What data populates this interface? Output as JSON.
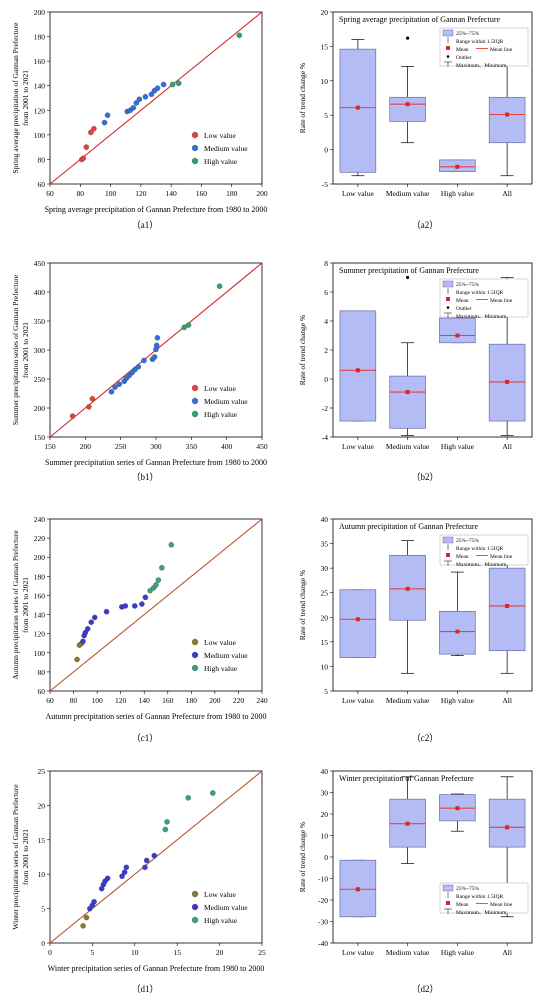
{
  "figure": {
    "panels": [
      {
        "id": "a1",
        "caption": "（a1）"
      },
      {
        "id": "a2",
        "caption": "（a2）"
      },
      {
        "id": "b1",
        "caption": "（b1）"
      },
      {
        "id": "b2",
        "caption": "（b2）"
      },
      {
        "id": "c1",
        "caption": "（c1）"
      },
      {
        "id": "c2",
        "caption": "（c2）"
      },
      {
        "id": "d1",
        "caption": "（d1）"
      },
      {
        "id": "d2",
        "caption": "（d2）"
      }
    ]
  },
  "chart_data": [
    {
      "id": "a1",
      "type": "scatter",
      "title": "",
      "xlabel": "Spring average  precipitation of Gannan Prefecture from 1980 to 2000",
      "ylabel": [
        "Spring average precipitation of Gannan Prefecture",
        "from 2001 to 2021"
      ],
      "xlim": [
        60,
        200
      ],
      "ylim": [
        60,
        200
      ],
      "xticks": [
        60,
        80,
        100,
        120,
        140,
        160,
        180,
        200
      ],
      "yticks": [
        60,
        80,
        100,
        120,
        140,
        160,
        180,
        200
      ],
      "diagonal": true,
      "diag_color": "#d62728",
      "legend_pos": "bottom-right",
      "series": [
        {
          "name": "Low value",
          "color": "#e8413a",
          "points": [
            [
              81,
              80
            ],
            [
              82,
              81
            ],
            [
              84,
              90
            ],
            [
              87,
              102
            ],
            [
              89,
              105
            ]
          ]
        },
        {
          "name": "Medium value",
          "color": "#2f6fe0",
          "points": [
            [
              96,
              110
            ],
            [
              98,
              116
            ],
            [
              111,
              119
            ],
            [
              113,
              120
            ],
            [
              115,
              122
            ],
            [
              117,
              126
            ],
            [
              119,
              129
            ],
            [
              123,
              131
            ],
            [
              127,
              133
            ],
            [
              129,
              136
            ],
            [
              131,
              138
            ],
            [
              135,
              141
            ]
          ]
        },
        {
          "name": "High value",
          "color": "#2aa36f",
          "points": [
            [
              141,
              141
            ],
            [
              145,
              142
            ],
            [
              185,
              181
            ]
          ]
        }
      ]
    },
    {
      "id": "a2",
      "type": "box",
      "title": "Spring average precipitation of Gannan Prefecture",
      "xlabel": "",
      "ylabel": "Rate of trend change %",
      "ylim": [
        -5,
        20
      ],
      "yticks": [
        -5,
        0,
        5,
        10,
        15,
        20
      ],
      "categories": [
        "Low value",
        "Medium value",
        "High value",
        "All"
      ],
      "boxes": [
        {
          "q1": -3.3,
          "q3": 14.6,
          "median": 6.1,
          "mean": 6.1,
          "min": -3.8,
          "max": 16.0,
          "outliers": []
        },
        {
          "q1": 4.1,
          "q3": 7.6,
          "median": 6.6,
          "mean": 6.6,
          "min": 1.0,
          "max": 12.1,
          "outliers": [
            16.2
          ]
        },
        {
          "q1": -3.2,
          "q3": -1.5,
          "median": -2.5,
          "mean": -2.5,
          "min": -3.2,
          "max": -1.5,
          "outliers": []
        },
        {
          "q1": 1.0,
          "q3": 7.6,
          "median": 5.1,
          "mean": 5.1,
          "min": -3.8,
          "max": 16.2,
          "outliers": []
        }
      ],
      "legend": {
        "pos": "top-right",
        "items": [
          "25%~75%",
          "Range within 1.5IQR",
          "Mean",
          "Mean line",
          "Outlier",
          "Maximum、Minimum"
        ]
      }
    },
    {
      "id": "b1",
      "type": "scatter",
      "title": "",
      "xlabel": "Summer precipitation series of Gannan Prefecture from 1980 to 2000",
      "ylabel": [
        "Summer precipitation series of Gannan Prefecture",
        "from 2001 to 2021"
      ],
      "xlim": [
        150,
        450
      ],
      "ylim": [
        150,
        450
      ],
      "xticks": [
        150,
        200,
        250,
        300,
        350,
        400,
        450
      ],
      "yticks": [
        150,
        200,
        250,
        300,
        350,
        400,
        450
      ],
      "diagonal": true,
      "diag_color": "#d62728",
      "legend_pos": "bottom-right",
      "series": [
        {
          "name": "Low value",
          "color": "#e8413a",
          "points": [
            [
              182,
              186
            ],
            [
              205,
              202
            ],
            [
              210,
              216
            ]
          ]
        },
        {
          "name": "Medium value",
          "color": "#2f6fe0",
          "points": [
            [
              237,
              228
            ],
            [
              242,
              236
            ],
            [
              248,
              241
            ],
            [
              255,
              246
            ],
            [
              258,
              251
            ],
            [
              262,
              256
            ],
            [
              266,
              261
            ],
            [
              270,
              266
            ],
            [
              275,
              271
            ],
            [
              283,
              282
            ],
            [
              295,
              284
            ],
            [
              298,
              288
            ],
            [
              300,
              301
            ],
            [
              301,
              308
            ],
            [
              302,
              321
            ]
          ]
        },
        {
          "name": "High value",
          "color": "#2aa36f",
          "points": [
            [
              340,
              339
            ],
            [
              346,
              343
            ],
            [
              390,
              410
            ]
          ]
        }
      ]
    },
    {
      "id": "b2",
      "type": "box",
      "title": "Summer precipitation of Gannan Prefecture",
      "xlabel": "",
      "ylabel": "Rate of trend change %",
      "ylim": [
        -4,
        8
      ],
      "yticks": [
        -4,
        -2,
        0,
        2,
        4,
        6,
        8
      ],
      "categories": [
        "Low value",
        "Medium value",
        "High value",
        "All"
      ],
      "boxes": [
        {
          "q1": -2.9,
          "q3": 4.7,
          "median": 0.6,
          "mean": 0.6,
          "min": -2.9,
          "max": 4.7,
          "outliers": []
        },
        {
          "q1": -3.4,
          "q3": 0.2,
          "median": -0.9,
          "mean": -0.9,
          "min": -3.9,
          "max": 2.5,
          "outliers": [
            7.0
          ]
        },
        {
          "q1": 2.5,
          "q3": 4.2,
          "median": 3.0,
          "mean": 3.0,
          "min": 2.5,
          "max": 4.2,
          "outliers": []
        },
        {
          "q1": -2.9,
          "q3": 2.4,
          "median": -0.2,
          "mean": -0.2,
          "min": -3.9,
          "max": 7.0,
          "outliers": []
        }
      ],
      "legend": {
        "pos": "top-right",
        "items": [
          "25%~75%",
          "Range within 1.5IQR",
          "Mean",
          "Mean line",
          "Outlier",
          "Maximum、Minimum"
        ]
      }
    },
    {
      "id": "c1",
      "type": "scatter",
      "title": "",
      "xlabel": "Autumn precipitation series of Gannan Prefecture from 1980 to 2000",
      "ylabel": [
        "Autumn precipitation series of Gannan Prefecture",
        "from 2001 to 2021"
      ],
      "xlim": [
        60,
        240
      ],
      "ylim": [
        60,
        240
      ],
      "xticks": [
        60,
        80,
        100,
        120,
        140,
        160,
        180,
        200,
        220,
        240
      ],
      "yticks": [
        60,
        80,
        100,
        120,
        140,
        160,
        180,
        200,
        220,
        240
      ],
      "diagonal": true,
      "diag_color": "#b5542a",
      "legend_pos": "bottom-right",
      "series": [
        {
          "name": "Low value",
          "color": "#8a7a2e",
          "points": [
            [
              83,
              93
            ],
            [
              85,
              108
            ],
            [
              87,
              110
            ]
          ]
        },
        {
          "name": "Medium value",
          "color": "#3a3ad0",
          "points": [
            [
              88,
              112
            ],
            [
              89,
              118
            ],
            [
              90,
              121
            ],
            [
              92,
              125
            ],
            [
              95,
              132
            ],
            [
              98,
              137
            ],
            [
              108,
              143
            ],
            [
              121,
              148
            ],
            [
              124,
              149
            ],
            [
              132,
              149
            ],
            [
              138,
              151
            ],
            [
              141,
              158
            ]
          ]
        },
        {
          "name": "High value",
          "color": "#3aa37a",
          "points": [
            [
              145,
              165
            ],
            [
              148,
              168
            ],
            [
              150,
              171
            ],
            [
              152,
              176
            ],
            [
              155,
              189
            ],
            [
              163,
              213
            ]
          ]
        }
      ]
    },
    {
      "id": "c2",
      "type": "box",
      "title": "Autumn  precipitation of Gannan Prefecture",
      "xlabel": "",
      "ylabel": "Rate of trend change %",
      "ylim": [
        5,
        40
      ],
      "yticks": [
        5,
        10,
        15,
        20,
        25,
        30,
        35,
        40
      ],
      "categories": [
        "Low value",
        "Medium value",
        "High value",
        "All"
      ],
      "boxes": [
        {
          "q1": 11.8,
          "q3": 25.6,
          "median": 19.6,
          "mean": 19.6,
          "min": 11.8,
          "max": 25.6,
          "outliers": []
        },
        {
          "q1": 19.4,
          "q3": 32.6,
          "median": 25.8,
          "mean": 25.8,
          "min": 8.6,
          "max": 35.6,
          "outliers": []
        },
        {
          "q1": 12.5,
          "q3": 21.2,
          "median": 17.1,
          "mean": 17.1,
          "min": 12.2,
          "max": 29.2,
          "outliers": []
        },
        {
          "q1": 13.2,
          "q3": 30.0,
          "median": 22.3,
          "mean": 22.3,
          "min": 8.6,
          "max": 35.6,
          "outliers": []
        }
      ],
      "legend": {
        "pos": "top-right",
        "items": [
          "25%~75%",
          "Range within 1.5IQR",
          "Mean",
          "Mean line",
          "Maximum、Minimum"
        ]
      }
    },
    {
      "id": "d1",
      "type": "scatter",
      "title": "",
      "xlabel": "Winter precipitation series of Gannan Prefecture from 1980 to 2000",
      "ylabel": [
        "Winter precipitation series of Gannan Prefecture",
        "from 2001 to 2021"
      ],
      "xlim": [
        0,
        25
      ],
      "ylim": [
        0,
        25
      ],
      "xticks": [
        0,
        5,
        10,
        15,
        20,
        25
      ],
      "yticks": [
        0,
        5,
        10,
        15,
        20,
        25
      ],
      "diagonal": true,
      "diag_color": "#b5542a",
      "legend_pos": "bottom-right",
      "series": [
        {
          "name": "Low value",
          "color": "#8a7a2e",
          "points": [
            [
              3.9,
              2.5
            ],
            [
              4.3,
              3.7
            ]
          ]
        },
        {
          "name": "Medium value",
          "color": "#3a3ad0",
          "points": [
            [
              4.7,
              5.0
            ],
            [
              5.0,
              5.5
            ],
            [
              5.2,
              6.0
            ],
            [
              6.1,
              7.9
            ],
            [
              6.3,
              8.5
            ],
            [
              6.5,
              9.0
            ],
            [
              6.8,
              9.4
            ],
            [
              8.5,
              9.7
            ],
            [
              8.8,
              10.3
            ],
            [
              9.0,
              11.0
            ],
            [
              11.2,
              11.0
            ],
            [
              11.4,
              12.0
            ],
            [
              12.3,
              12.7
            ]
          ]
        },
        {
          "name": "High value",
          "color": "#3aa37a",
          "points": [
            [
              13.6,
              16.5
            ],
            [
              13.8,
              17.6
            ],
            [
              16.3,
              21.1
            ],
            [
              19.2,
              21.8
            ]
          ]
        }
      ]
    },
    {
      "id": "d2",
      "type": "box",
      "title": "Winter precipitation of Gannan Prefecture",
      "xlabel": "",
      "ylabel": "Rate of trend change %",
      "ylim": [
        -40,
        40
      ],
      "yticks": [
        -40,
        -30,
        -20,
        -10,
        0,
        10,
        20,
        30,
        40
      ],
      "categories": [
        "Low value",
        "Medium value",
        "High value",
        "All"
      ],
      "boxes": [
        {
          "q1": -27.8,
          "q3": -1.5,
          "median": -15.0,
          "mean": -15.0,
          "min": -27.8,
          "max": -1.5,
          "outliers": []
        },
        {
          "q1": 4.6,
          "q3": 26.9,
          "median": 15.5,
          "mean": 15.5,
          "min": -3.0,
          "max": 37.3,
          "outliers": []
        },
        {
          "q1": 16.8,
          "q3": 29.0,
          "median": 22.7,
          "mean": 22.7,
          "min": 12.0,
          "max": 29.3,
          "outliers": []
        },
        {
          "q1": 4.6,
          "q3": 26.9,
          "median": 13.8,
          "mean": 13.8,
          "min": -27.8,
          "max": 37.3,
          "outliers": []
        }
      ],
      "legend": {
        "pos": "bottom-right",
        "items": [
          "25%~75%",
          "Range within 1.5IQR",
          "Mean",
          "Mean line",
          "Maximum、Minimum"
        ]
      }
    }
  ],
  "colors": {
    "box_fill": "#b3bcf5",
    "box_stroke": "#6b6ba8",
    "median_line": "#e8413a",
    "mean_marker": "#d62728",
    "whisker": "#000000"
  }
}
